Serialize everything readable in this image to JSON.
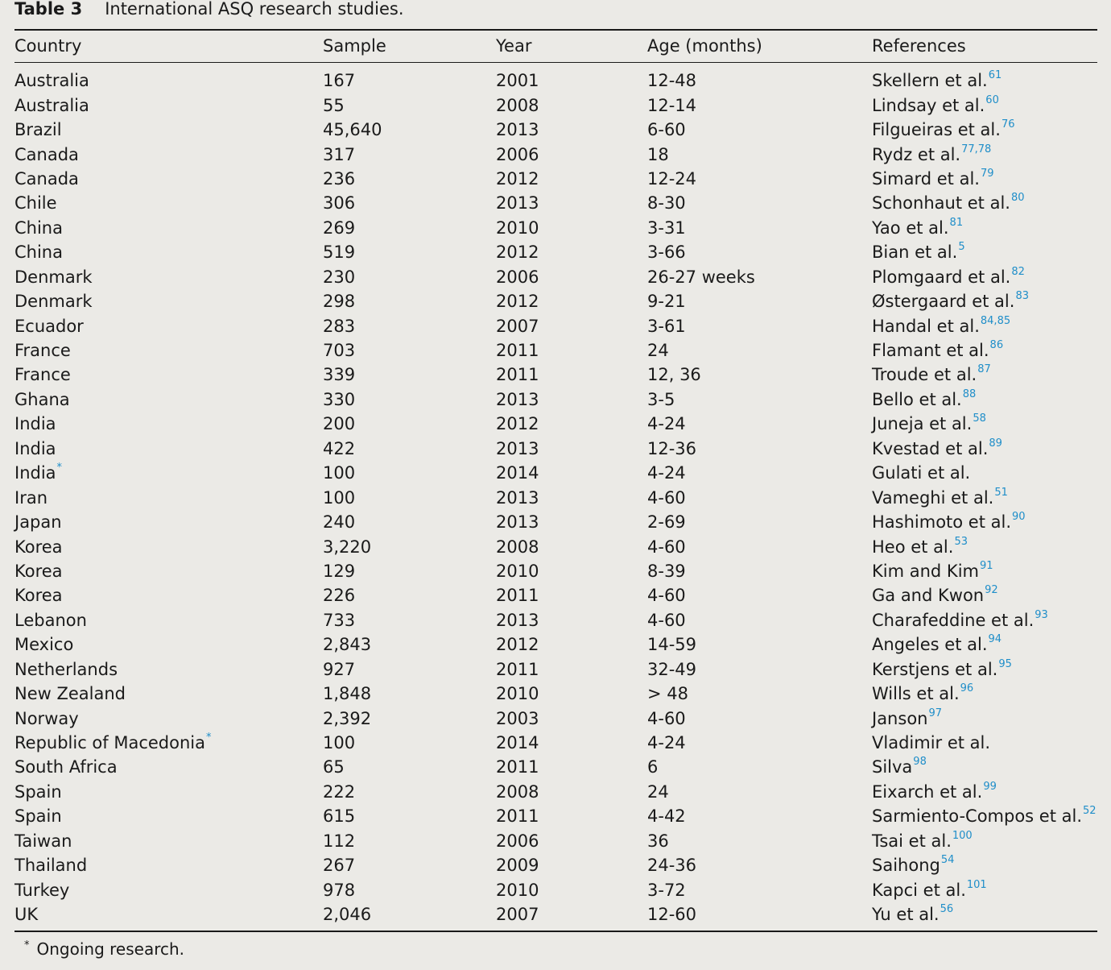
{
  "caption": {
    "label": "Table 3",
    "title": "International ASQ research studies."
  },
  "headers": [
    "Country",
    "Sample",
    "Year",
    "Age (months)",
    "References"
  ],
  "rows": [
    {
      "country": "Australia",
      "country_mark": "",
      "sample": "167",
      "year": "2001",
      "age": "12-48",
      "ref": "Skellern et al.",
      "ref_sup": "61"
    },
    {
      "country": "Australia",
      "country_mark": "",
      "sample": "55",
      "year": "2008",
      "age": "12-14",
      "ref": "Lindsay et al.",
      "ref_sup": "60"
    },
    {
      "country": "Brazil",
      "country_mark": "",
      "sample": "45,640",
      "year": "2013",
      "age": "6-60",
      "ref": "Filgueiras et al.",
      "ref_sup": "76"
    },
    {
      "country": "Canada",
      "country_mark": "",
      "sample": "317",
      "year": "2006",
      "age": "18",
      "ref": "Rydz et al.",
      "ref_sup": "77,78"
    },
    {
      "country": "Canada",
      "country_mark": "",
      "sample": "236",
      "year": "2012",
      "age": "12-24",
      "ref": "Simard et al.",
      "ref_sup": "79"
    },
    {
      "country": "Chile",
      "country_mark": "",
      "sample": "306",
      "year": "2013",
      "age": "8-30",
      "ref": "Schonhaut et al.",
      "ref_sup": "80"
    },
    {
      "country": "China",
      "country_mark": "",
      "sample": "269",
      "year": "2010",
      "age": "3-31",
      "ref": "Yao et al.",
      "ref_sup": "81"
    },
    {
      "country": "China",
      "country_mark": "",
      "sample": "519",
      "year": "2012",
      "age": "3-66",
      "ref": "Bian et al.",
      "ref_sup": "5"
    },
    {
      "country": "Denmark",
      "country_mark": "",
      "sample": "230",
      "year": "2006",
      "age": "26-27 weeks",
      "ref": "Plomgaard et al.",
      "ref_sup": "82"
    },
    {
      "country": "Denmark",
      "country_mark": "",
      "sample": "298",
      "year": "2012",
      "age": "9-21",
      "ref": "Østergaard et al.",
      "ref_sup": "83"
    },
    {
      "country": "Ecuador",
      "country_mark": "",
      "sample": "283",
      "year": "2007",
      "age": "3-61",
      "ref": "Handal et al.",
      "ref_sup": "84,85"
    },
    {
      "country": "France",
      "country_mark": "",
      "sample": "703",
      "year": "2011",
      "age": "24",
      "ref": "Flamant et al.",
      "ref_sup": "86"
    },
    {
      "country": "France",
      "country_mark": "",
      "sample": "339",
      "year": "2011",
      "age": "12, 36",
      "ref": "Troude et al.",
      "ref_sup": "87"
    },
    {
      "country": "Ghana",
      "country_mark": "",
      "sample": "330",
      "year": "2013",
      "age": "3-5",
      "ref": "Bello et al.",
      "ref_sup": "88"
    },
    {
      "country": "India",
      "country_mark": "",
      "sample": "200",
      "year": "2012",
      "age": "4-24",
      "ref": "Juneja et al.",
      "ref_sup": "58"
    },
    {
      "country": "India",
      "country_mark": "",
      "sample": "422",
      "year": "2013",
      "age": "12-36",
      "ref": "Kvestad et al.",
      "ref_sup": "89"
    },
    {
      "country": "India",
      "country_mark": "*",
      "sample": "100",
      "year": "2014",
      "age": "4-24",
      "ref": "Gulati et al.",
      "ref_sup": ""
    },
    {
      "country": "Iran",
      "country_mark": "",
      "sample": "100",
      "year": "2013",
      "age": "4-60",
      "ref": "Vameghi et al.",
      "ref_sup": "51"
    },
    {
      "country": "Japan",
      "country_mark": "",
      "sample": "240",
      "year": "2013",
      "age": "2-69",
      "ref": "Hashimoto et al.",
      "ref_sup": "90"
    },
    {
      "country": "Korea",
      "country_mark": "",
      "sample": "3,220",
      "year": "2008",
      "age": "4-60",
      "ref": "Heo et al.",
      "ref_sup": "53"
    },
    {
      "country": "Korea",
      "country_mark": "",
      "sample": "129",
      "year": "2010",
      "age": "8-39",
      "ref": "Kim and Kim",
      "ref_sup": "91"
    },
    {
      "country": "Korea",
      "country_mark": "",
      "sample": "226",
      "year": "2011",
      "age": "4-60",
      "ref": "Ga and Kwon",
      "ref_sup": "92"
    },
    {
      "country": "Lebanon",
      "country_mark": "",
      "sample": "733",
      "year": "2013",
      "age": "4-60",
      "ref": "Charafeddine et al.",
      "ref_sup": "93"
    },
    {
      "country": "Mexico",
      "country_mark": "",
      "sample": "2,843",
      "year": "2012",
      "age": "14-59",
      "ref": "Angeles et al.",
      "ref_sup": "94"
    },
    {
      "country": "Netherlands",
      "country_mark": "",
      "sample": "927",
      "year": "2011",
      "age": "32-49",
      "ref": "Kerstjens et al.",
      "ref_sup": "95"
    },
    {
      "country": "New Zealand",
      "country_mark": "",
      "sample": "1,848",
      "year": "2010",
      "age": "> 48",
      "ref": "Wills et al.",
      "ref_sup": "96"
    },
    {
      "country": "Norway",
      "country_mark": "",
      "sample": "2,392",
      "year": "2003",
      "age": "4-60",
      "ref": "Janson",
      "ref_sup": "97"
    },
    {
      "country": "Republic of Macedonia",
      "country_mark": "*",
      "sample": "100",
      "year": "2014",
      "age": "4-24",
      "ref": "Vladimir et al.",
      "ref_sup": ""
    },
    {
      "country": "South Africa",
      "country_mark": "",
      "sample": "65",
      "year": "2011",
      "age": "6",
      "ref": "Silva",
      "ref_sup": "98"
    },
    {
      "country": "Spain",
      "country_mark": "",
      "sample": "222",
      "year": "2008",
      "age": "24",
      "ref": "Eixarch et al.",
      "ref_sup": "99"
    },
    {
      "country": "Spain",
      "country_mark": "",
      "sample": "615",
      "year": "2011",
      "age": "4-42",
      "ref": "Sarmiento-Compos et al.",
      "ref_sup": "52"
    },
    {
      "country": "Taiwan",
      "country_mark": "",
      "sample": "112",
      "year": "2006",
      "age": "36",
      "ref": "Tsai et al.",
      "ref_sup": "100"
    },
    {
      "country": "Thailand",
      "country_mark": "",
      "sample": "267",
      "year": "2009",
      "age": "24-36",
      "ref": "Saihong",
      "ref_sup": "54"
    },
    {
      "country": "Turkey",
      "country_mark": "",
      "sample": "978",
      "year": "2010",
      "age": "3-72",
      "ref": "Kapci et al.",
      "ref_sup": "101"
    },
    {
      "country": "UK",
      "country_mark": "",
      "sample": "2,046",
      "year": "2007",
      "age": "12-60",
      "ref": "Yu et al.",
      "ref_sup": "56"
    }
  ],
  "footnote": {
    "mark": "*",
    "text": "Ongoing research."
  },
  "colors": {
    "background": "#ebeae6",
    "text": "#1a1a1a",
    "link": "#1f8ec9"
  }
}
